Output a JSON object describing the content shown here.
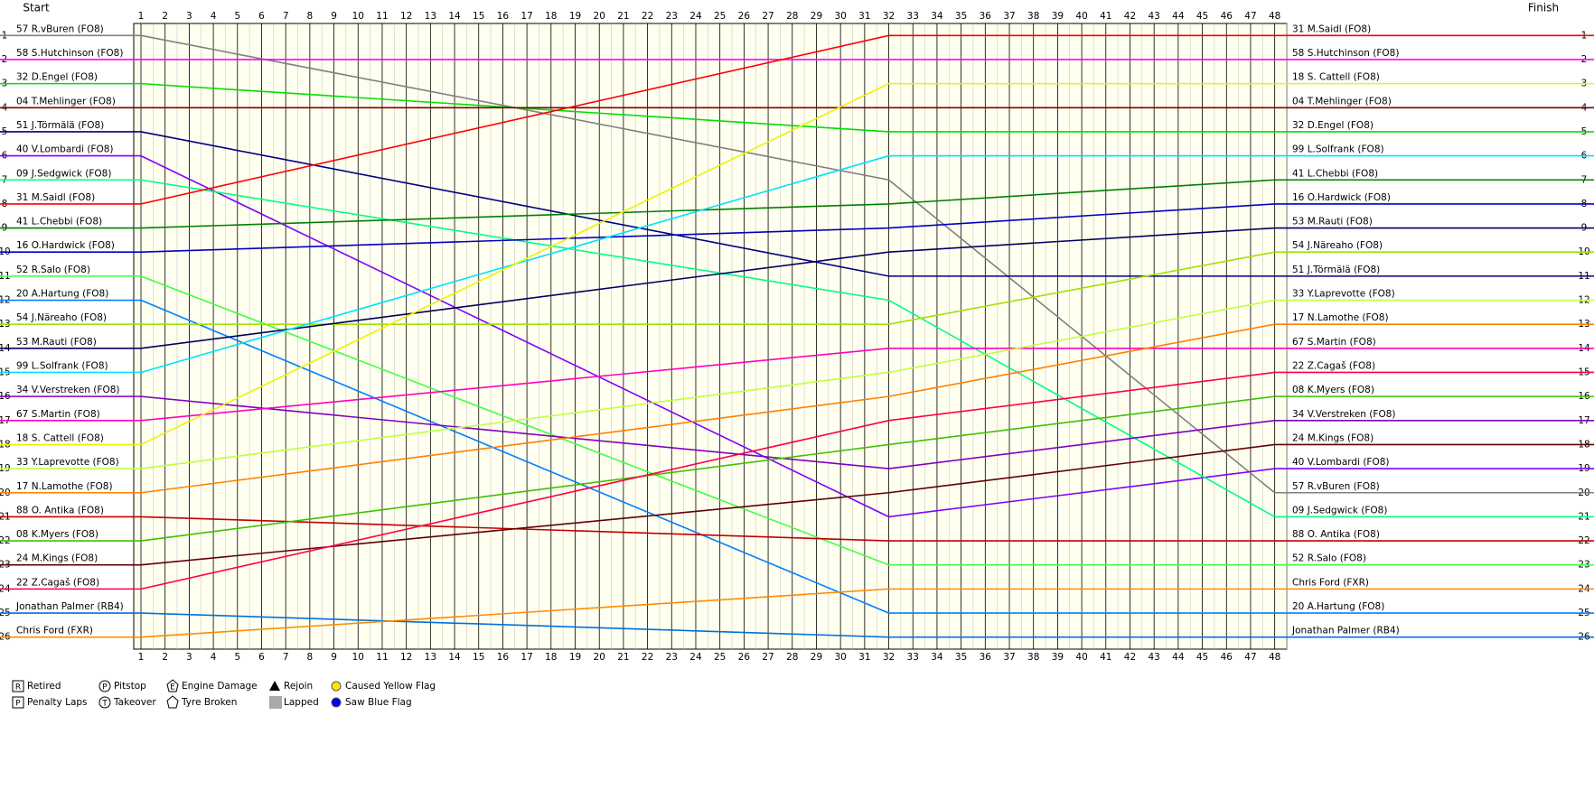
{
  "chart_data": {
    "type": "lapchart",
    "start_label": "Start",
    "finish_label": "Finish",
    "x": [
      1,
      32,
      48
    ],
    "xlim": [
      0.7,
      48.5
    ],
    "ylim": [
      0.5,
      26.5
    ],
    "xticks": [
      1,
      2,
      3,
      4,
      5,
      6,
      7,
      8,
      9,
      10,
      11,
      12,
      13,
      14,
      15,
      16,
      17,
      18,
      19,
      20,
      21,
      22,
      23,
      24,
      25,
      26,
      27,
      28,
      29,
      30,
      31,
      32,
      33,
      34,
      35,
      36,
      37,
      38,
      39,
      40,
      41,
      42,
      43,
      44,
      45,
      46,
      47,
      48
    ],
    "yticks": [
      1,
      2,
      3,
      4,
      5,
      6,
      7,
      8,
      9,
      10,
      11,
      12,
      13,
      14,
      15,
      16,
      17,
      18,
      19,
      20,
      21,
      22,
      23,
      24,
      25,
      26
    ],
    "grid": true,
    "series": [
      {
        "name": "57 R.vBuren (FO8)",
        "color": "#808080",
        "values": [
          1,
          7,
          20
        ]
      },
      {
        "name": "58 S.Hutchinson (FO8)",
        "color": "#ff00ff",
        "values": [
          2,
          2,
          2
        ]
      },
      {
        "name": "32 D.Engel (FO8)",
        "color": "#00e000",
        "values": [
          3,
          5,
          5
        ]
      },
      {
        "name": "04 T.Mehlinger (FO8)",
        "color": "#800000",
        "values": [
          4,
          4,
          4
        ]
      },
      {
        "name": "51 J.Törmälä (FO8)",
        "color": "#000080",
        "values": [
          5,
          11,
          11
        ]
      },
      {
        "name": "40 V.Lombardi (FO8)",
        "color": "#8000ff",
        "values": [
          6,
          21,
          19
        ]
      },
      {
        "name": "09 J.Sedgwick (FO8)",
        "color": "#00ff80",
        "values": [
          7,
          12,
          21
        ]
      },
      {
        "name": "31 M.Saidl (FO8)",
        "color": "#ff0000",
        "values": [
          8,
          1,
          1
        ]
      },
      {
        "name": "41 L.Chebbi (FO8)",
        "color": "#008000",
        "values": [
          9,
          8,
          7
        ]
      },
      {
        "name": "16 O.Hardwick (FO8)",
        "color": "#0000c0",
        "values": [
          10,
          9,
          8
        ]
      },
      {
        "name": "52 R.Salo (FO8)",
        "color": "#40ff40",
        "values": [
          11,
          23,
          23
        ]
      },
      {
        "name": "20 A.Hartung (FO8)",
        "color": "#0080ff",
        "values": [
          12,
          25,
          25
        ]
      },
      {
        "name": "54 J.Näreaho (FO8)",
        "color": "#a0e000",
        "values": [
          13,
          13,
          10
        ]
      },
      {
        "name": "53 M.Rauti (FO8)",
        "color": "#000060",
        "values": [
          14,
          10,
          9
        ]
      },
      {
        "name": "99 L.Solfrank (FO8)",
        "color": "#00e0ff",
        "values": [
          15,
          6,
          6
        ]
      },
      {
        "name": "34 V.Verstreken (FO8)",
        "color": "#8000c0",
        "values": [
          16,
          19,
          17
        ]
      },
      {
        "name": "67 S.Martin (FO8)",
        "color": "#ff00c0",
        "values": [
          17,
          14,
          14
        ]
      },
      {
        "name": "18 S. Cattell (FO8)",
        "color": "#f0f000",
        "values": [
          18,
          3,
          3
        ]
      },
      {
        "name": "33 Y.Laprevotte (FO8)",
        "color": "#c0ff40",
        "values": [
          19,
          15,
          12
        ]
      },
      {
        "name": "17 N.Lamothe (FO8)",
        "color": "#ff8000",
        "values": [
          20,
          16,
          13
        ]
      },
      {
        "name": "88 O. Antika (FO8)",
        "color": "#c00000",
        "values": [
          21,
          22,
          22
        ]
      },
      {
        "name": "08 K.Myers (FO8)",
        "color": "#40c000",
        "values": [
          22,
          18,
          16
        ]
      },
      {
        "name": "24 M.Kings (FO8)",
        "color": "#600000",
        "values": [
          23,
          20,
          18
        ]
      },
      {
        "name": "22 Z.Cagaš (FO8)",
        "color": "#ff0040",
        "values": [
          24,
          17,
          15
        ]
      },
      {
        "name": "Jonathan Palmer (RB4)",
        "color": "#0070e0",
        "values": [
          25,
          26,
          26
        ]
      },
      {
        "name": "Chris Ford (FXR)",
        "color": "#ff8c00",
        "values": [
          26,
          24,
          24
        ]
      }
    ],
    "legend": [
      {
        "icon": "R",
        "label": "Retired"
      },
      {
        "icon": "P",
        "label": "Penalty Laps"
      },
      {
        "icon": "P",
        "label": "Pitstop"
      },
      {
        "icon": "T",
        "label": "Takeover"
      },
      {
        "icon": "E",
        "label": "Engine Damage"
      },
      {
        "label": "Tyre Broken"
      },
      {
        "label": "Rejoin"
      },
      {
        "label": "Lapped"
      },
      {
        "label": "Caused Yellow Flag"
      },
      {
        "label": "Saw Blue Flag"
      }
    ]
  }
}
